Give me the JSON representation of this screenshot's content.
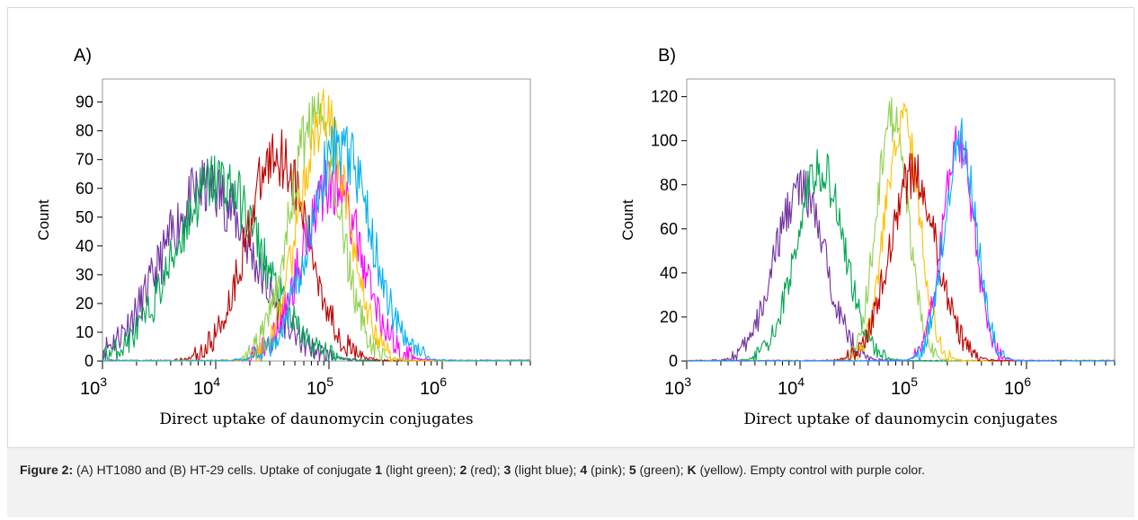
{
  "caption": {
    "label": "Figure 2:",
    "parts": [
      {
        "t": " (A) HT1080 and (B) HT-29 cells. Uptake of conjugate ",
        "b": false
      },
      {
        "t": "1",
        "b": true
      },
      {
        "t": " (light green); ",
        "b": false
      },
      {
        "t": "2",
        "b": true
      },
      {
        "t": " (red); ",
        "b": false
      },
      {
        "t": "3",
        "b": true
      },
      {
        "t": " (light blue); ",
        "b": false
      },
      {
        "t": "4",
        "b": true
      },
      {
        "t": " (pink); ",
        "b": false
      },
      {
        "t": "5",
        "b": true
      },
      {
        "t": " (green); ",
        "b": false
      },
      {
        "t": "K",
        "b": true
      },
      {
        "t": " (yellow). Empty control with purple color.",
        "b": false
      }
    ]
  },
  "chart_data": [
    {
      "type": "area",
      "panel_label": "A)",
      "xlabel": "Direct uptake of daunomycin conjugates",
      "ylabel": "Count",
      "x_scale": "log",
      "xlim": [
        1000,
        6000000
      ],
      "ylim": [
        0,
        98
      ],
      "x_ticks": [
        {
          "v": 1000,
          "base": "10",
          "exp": "3"
        },
        {
          "v": 10000,
          "base": "10",
          "exp": "4"
        },
        {
          "v": 100000,
          "base": "10",
          "exp": "5"
        },
        {
          "v": 1000000,
          "base": "10",
          "exp": "6"
        }
      ],
      "y_ticks": [
        0,
        10,
        20,
        30,
        40,
        50,
        60,
        70,
        80,
        90
      ],
      "series": [
        {
          "color": "#7030a0",
          "center": 8500,
          "width": 0.4,
          "peak": 60
        },
        {
          "color": "#00a651",
          "center": 10500,
          "width": 0.38,
          "peak": 63
        },
        {
          "color": "#c00000",
          "center": 35000,
          "width": 0.27,
          "peak": 72
        },
        {
          "color": "#ff00ff",
          "center": 105000,
          "width": 0.26,
          "peak": 62
        },
        {
          "color": "#92d050",
          "center": 75000,
          "width": 0.22,
          "peak": 84
        },
        {
          "color": "#ffc000",
          "center": 90000,
          "width": 0.22,
          "peak": 84
        },
        {
          "color": "#00b0f0",
          "center": 125000,
          "width": 0.27,
          "peak": 75
        }
      ]
    },
    {
      "type": "area",
      "panel_label": "B)",
      "xlabel": "Direct uptake of daunomycin conjugates",
      "ylabel": "Count",
      "x_scale": "log",
      "xlim": [
        1000,
        6000000
      ],
      "ylim": [
        0,
        128
      ],
      "x_ticks": [
        {
          "v": 1000,
          "base": "10",
          "exp": "3"
        },
        {
          "v": 10000,
          "base": "10",
          "exp": "4"
        },
        {
          "v": 100000,
          "base": "10",
          "exp": "5"
        },
        {
          "v": 1000000,
          "base": "10",
          "exp": "6"
        }
      ],
      "y_ticks": [
        0,
        20,
        40,
        60,
        80,
        100,
        120
      ],
      "series": [
        {
          "color": "#7030a0",
          "center": 10000,
          "width": 0.22,
          "peak": 78
        },
        {
          "color": "#00a651",
          "center": 15000,
          "width": 0.21,
          "peak": 88
        },
        {
          "color": "#92d050",
          "center": 65000,
          "width": 0.14,
          "peak": 110
        },
        {
          "color": "#ffc000",
          "center": 80000,
          "width": 0.15,
          "peak": 110
        },
        {
          "color": "#c00000",
          "center": 100000,
          "width": 0.21,
          "peak": 85
        },
        {
          "color": "#ff00ff",
          "center": 250000,
          "width": 0.14,
          "peak": 100
        },
        {
          "color": "#00b0f0",
          "center": 260000,
          "width": 0.14,
          "peak": 100
        }
      ]
    }
  ]
}
